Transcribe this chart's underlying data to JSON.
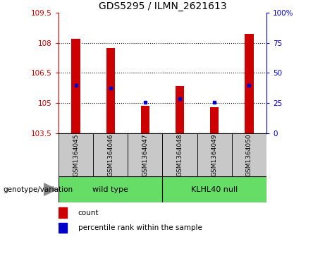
{
  "title": "GDS5295 / ILMN_2621613",
  "samples": [
    "GSM1364045",
    "GSM1364046",
    "GSM1364047",
    "GSM1364048",
    "GSM1364049",
    "GSM1364050"
  ],
  "bar_values": [
    108.2,
    107.75,
    104.85,
    105.85,
    104.8,
    108.45
  ],
  "percentile_values": [
    105.9,
    105.75,
    105.05,
    105.2,
    105.05,
    105.9
  ],
  "ylim_left": [
    103.5,
    109.5
  ],
  "yticks_left": [
    103.5,
    105.0,
    106.5,
    108.0,
    109.5
  ],
  "ytick_labels_left": [
    "103.5",
    "105",
    "106.5",
    "108",
    "109.5"
  ],
  "ylim_right": [
    0,
    100
  ],
  "yticks_right": [
    0,
    25,
    50,
    75,
    100
  ],
  "ytick_labels_right": [
    "0",
    "25",
    "50",
    "75",
    "100%"
  ],
  "bar_color": "#cc0000",
  "dot_color": "#0000cc",
  "bar_width": 0.25,
  "bar_bottom": 103.5,
  "wt_label": "wild type",
  "kl_label": "KLHL40 null",
  "wt_color": "#66dd66",
  "kl_color": "#66dd66",
  "genotype_label": "genotype/variation",
  "legend_count_label": "count",
  "legend_percentile_label": "percentile rank within the sample",
  "left_tick_color": "#cc0000",
  "right_tick_color": "#0000cc",
  "label_box_color": "#c8c8c8",
  "grid_linestyle": "dotted"
}
